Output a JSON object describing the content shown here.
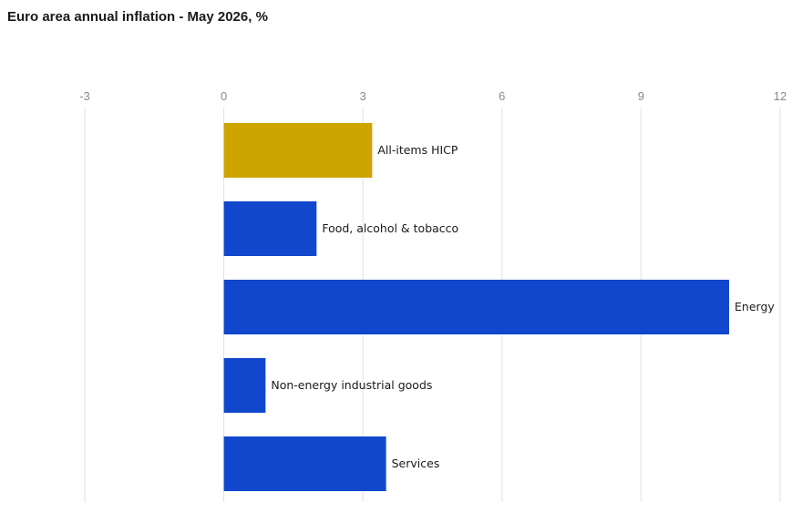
{
  "title": "Euro area annual inflation - May 2026, %",
  "chart_data": {
    "type": "bar",
    "orientation": "horizontal",
    "title": "Euro area annual inflation - May 2026, %",
    "xlabel": "",
    "ylabel": "",
    "xlim": [
      -3,
      12
    ],
    "xticks": [
      -3,
      0,
      3,
      6,
      9,
      12
    ],
    "grid": true,
    "categories": [
      "All-items HICP",
      "Food, alcohol & tobacco",
      "Energy",
      "Non-energy industrial goods",
      "Services"
    ],
    "values": [
      3.2,
      2.0,
      10.9,
      0.9,
      3.5
    ],
    "colors": [
      "#cda400",
      "#1147cc",
      "#1147cc",
      "#1147cc",
      "#1147cc"
    ]
  }
}
